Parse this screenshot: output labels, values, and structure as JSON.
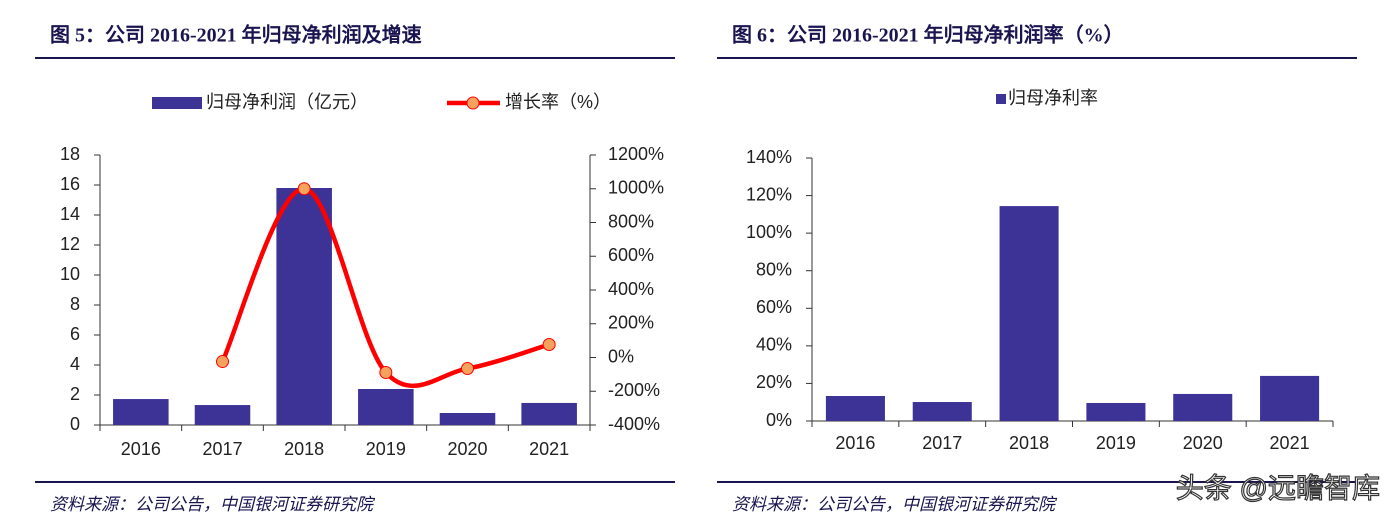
{
  "chart_data": [
    {
      "type": "combo",
      "title": "图 5：公司 2016-2021 年归母净利润及增速",
      "categories": [
        "2016",
        "2017",
        "2018",
        "2019",
        "2020",
        "2021"
      ],
      "series": [
        {
          "name": "归母净利润（亿元）",
          "type": "bar",
          "color": "#3d3296",
          "values": [
            1.73,
            1.33,
            15.8,
            2.4,
            0.8,
            1.47
          ]
        },
        {
          "name": "增长率（%）",
          "type": "line",
          "axis": "y2",
          "color": "#ff0000",
          "marker_color": "#f5a25d",
          "values": [
            null,
            -24,
            1000,
            -89,
            -65,
            77
          ]
        }
      ],
      "ylim": [
        0,
        18
      ],
      "yticks": [
        0,
        2,
        4,
        6,
        8,
        10,
        12,
        14,
        16,
        18
      ],
      "y2lim": [
        -400,
        1200
      ],
      "y2ticks": [
        {
          "value": -400,
          "label": "-400%"
        },
        {
          "value": -200,
          "label": "-200%"
        },
        {
          "value": 0,
          "label": "0%"
        },
        {
          "value": 200,
          "label": "200%"
        },
        {
          "value": 400,
          "label": "400%"
        },
        {
          "value": 600,
          "label": "600%"
        },
        {
          "value": 800,
          "label": "800%"
        },
        {
          "value": 1000,
          "label": "1000%"
        },
        {
          "value": 1200,
          "label": "1200%"
        }
      ],
      "grid": false,
      "legend": "top",
      "source": "资料来源：公司公告，中国银河证券研究院"
    },
    {
      "type": "bar",
      "title": "图 6：公司 2016-2021 年归母净利润率（%）",
      "categories": [
        "2016",
        "2017",
        "2018",
        "2019",
        "2020",
        "2021"
      ],
      "series": [
        {
          "name": "归母净利率",
          "type": "bar",
          "color": "#3d3296",
          "values": [
            13.3,
            10.1,
            114.4,
            9.6,
            14.4,
            24.0
          ]
        }
      ],
      "ylim": [
        0,
        140
      ],
      "yticks": [
        {
          "value": 0,
          "label": "0%"
        },
        {
          "value": 20,
          "label": "20%"
        },
        {
          "value": 40,
          "label": "40%"
        },
        {
          "value": 60,
          "label": "60%"
        },
        {
          "value": 80,
          "label": "80%"
        },
        {
          "value": 100,
          "label": "100%"
        },
        {
          "value": 120,
          "label": "120%"
        },
        {
          "value": 140,
          "label": "140%"
        }
      ],
      "grid": false,
      "legend": "top",
      "source": "资料来源：公司公告，中国银河证券研究院"
    }
  ],
  "watermark": "头条 @远瞻智库"
}
